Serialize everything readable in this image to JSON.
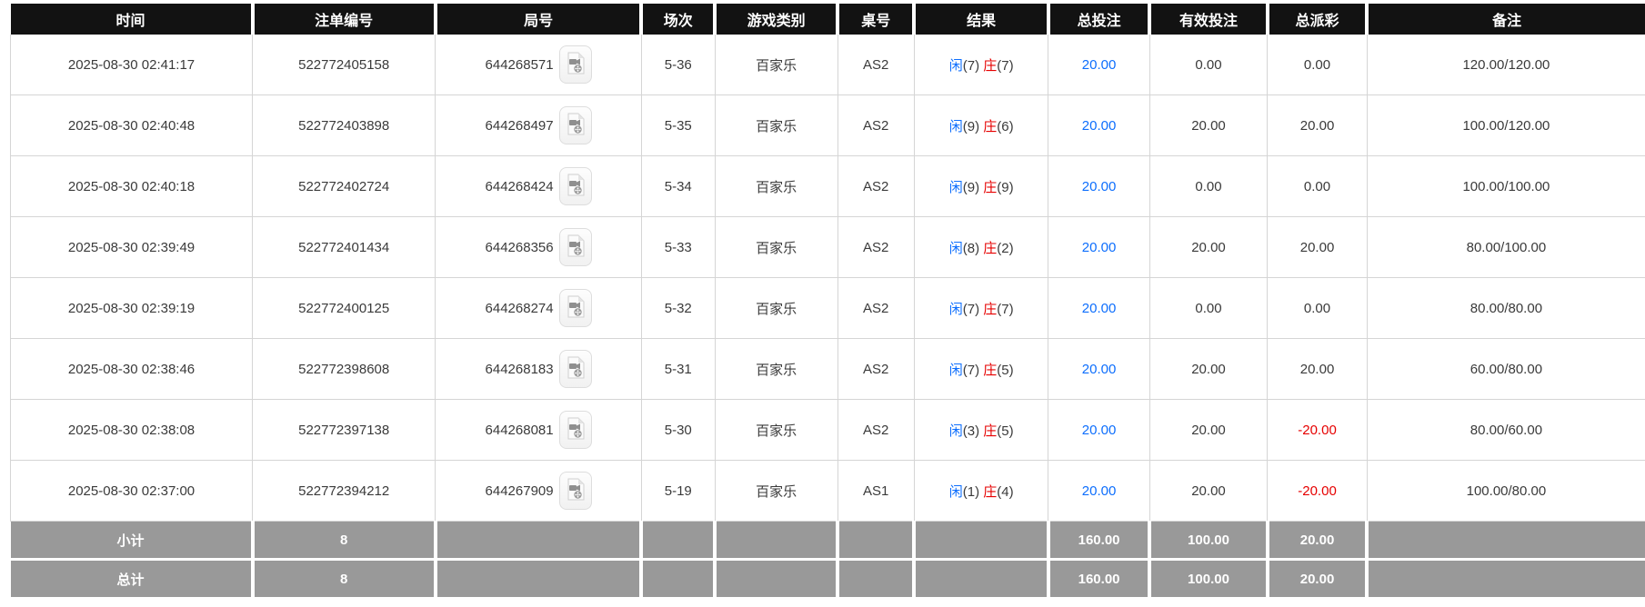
{
  "table": {
    "columns": [
      {
        "key": "time",
        "label": "时间"
      },
      {
        "key": "bet_id",
        "label": "注单编号"
      },
      {
        "key": "round_no",
        "label": "局号"
      },
      {
        "key": "session",
        "label": "场次"
      },
      {
        "key": "game_type",
        "label": "游戏类别"
      },
      {
        "key": "table_no",
        "label": "桌号"
      },
      {
        "key": "result",
        "label": "结果"
      },
      {
        "key": "total_bet",
        "label": "总投注"
      },
      {
        "key": "valid_bet",
        "label": "有效投注"
      },
      {
        "key": "total_payout",
        "label": "总派彩"
      },
      {
        "key": "remark",
        "label": "备注"
      }
    ],
    "rows": [
      {
        "time": "2025-08-30 02:41:17",
        "bet_id": "522772405158",
        "round_no": "644268571",
        "session": "5-36",
        "game_type": "百家乐",
        "table_no": "AS2",
        "result": {
          "player_label": "闲",
          "player_score": "(7)",
          "banker_label": "庄",
          "banker_score": "(7)"
        },
        "total_bet": "20.00",
        "valid_bet": "0.00",
        "total_payout": "0.00",
        "remark": "120.00/120.00"
      },
      {
        "time": "2025-08-30 02:40:48",
        "bet_id": "522772403898",
        "round_no": "644268497",
        "session": "5-35",
        "game_type": "百家乐",
        "table_no": "AS2",
        "result": {
          "player_label": "闲",
          "player_score": "(9)",
          "banker_label": "庄",
          "banker_score": "(6)"
        },
        "total_bet": "20.00",
        "valid_bet": "20.00",
        "total_payout": "20.00",
        "remark": "100.00/120.00"
      },
      {
        "time": "2025-08-30 02:40:18",
        "bet_id": "522772402724",
        "round_no": "644268424",
        "session": "5-34",
        "game_type": "百家乐",
        "table_no": "AS2",
        "result": {
          "player_label": "闲",
          "player_score": "(9)",
          "banker_label": "庄",
          "banker_score": "(9)"
        },
        "total_bet": "20.00",
        "valid_bet": "0.00",
        "total_payout": "0.00",
        "remark": "100.00/100.00"
      },
      {
        "time": "2025-08-30 02:39:49",
        "bet_id": "522772401434",
        "round_no": "644268356",
        "session": "5-33",
        "game_type": "百家乐",
        "table_no": "AS2",
        "result": {
          "player_label": "闲",
          "player_score": "(8)",
          "banker_label": "庄",
          "banker_score": "(2)"
        },
        "total_bet": "20.00",
        "valid_bet": "20.00",
        "total_payout": "20.00",
        "remark": "80.00/100.00"
      },
      {
        "time": "2025-08-30 02:39:19",
        "bet_id": "522772400125",
        "round_no": "644268274",
        "session": "5-32",
        "game_type": "百家乐",
        "table_no": "AS2",
        "result": {
          "player_label": "闲",
          "player_score": "(7)",
          "banker_label": "庄",
          "banker_score": "(7)"
        },
        "total_bet": "20.00",
        "valid_bet": "0.00",
        "total_payout": "0.00",
        "remark": "80.00/80.00"
      },
      {
        "time": "2025-08-30 02:38:46",
        "bet_id": "522772398608",
        "round_no": "644268183",
        "session": "5-31",
        "game_type": "百家乐",
        "table_no": "AS2",
        "result": {
          "player_label": "闲",
          "player_score": "(7)",
          "banker_label": "庄",
          "banker_score": "(5)"
        },
        "total_bet": "20.00",
        "valid_bet": "20.00",
        "total_payout": "20.00",
        "remark": "60.00/80.00"
      },
      {
        "time": "2025-08-30 02:38:08",
        "bet_id": "522772397138",
        "round_no": "644268081",
        "session": "5-30",
        "game_type": "百家乐",
        "table_no": "AS2",
        "result": {
          "player_label": "闲",
          "player_score": "(3)",
          "banker_label": "庄",
          "banker_score": "(5)"
        },
        "total_bet": "20.00",
        "valid_bet": "20.00",
        "total_payout": "-20.00",
        "remark": "80.00/60.00"
      },
      {
        "time": "2025-08-30 02:37:00",
        "bet_id": "522772394212",
        "round_no": "644267909",
        "session": "5-19",
        "game_type": "百家乐",
        "table_no": "AS1",
        "result": {
          "player_label": "闲",
          "player_score": "(1)",
          "banker_label": "庄",
          "banker_score": "(4)"
        },
        "total_bet": "20.00",
        "valid_bet": "20.00",
        "total_payout": "-20.00",
        "remark": "100.00/80.00"
      }
    ],
    "summary_rows": [
      {
        "label": "小计",
        "count": "8",
        "total_bet": "160.00",
        "valid_bet": "100.00",
        "total_payout": "20.00"
      },
      {
        "label": "总计",
        "count": "8",
        "total_bet": "160.00",
        "valid_bet": "100.00",
        "total_payout": "20.00"
      }
    ]
  },
  "icons": {
    "video_replay": "video-replay-icon"
  },
  "colors": {
    "header_bg": "#121212",
    "header_text": "#ffffff",
    "player_blue": "#0d6efd",
    "banker_red": "#e60000",
    "bet_link_blue": "#0d6efd",
    "negative_red": "#e60000",
    "summary_bg": "#999999",
    "summary_text": "#ffffff",
    "grid_line": "#d5d5d5"
  }
}
